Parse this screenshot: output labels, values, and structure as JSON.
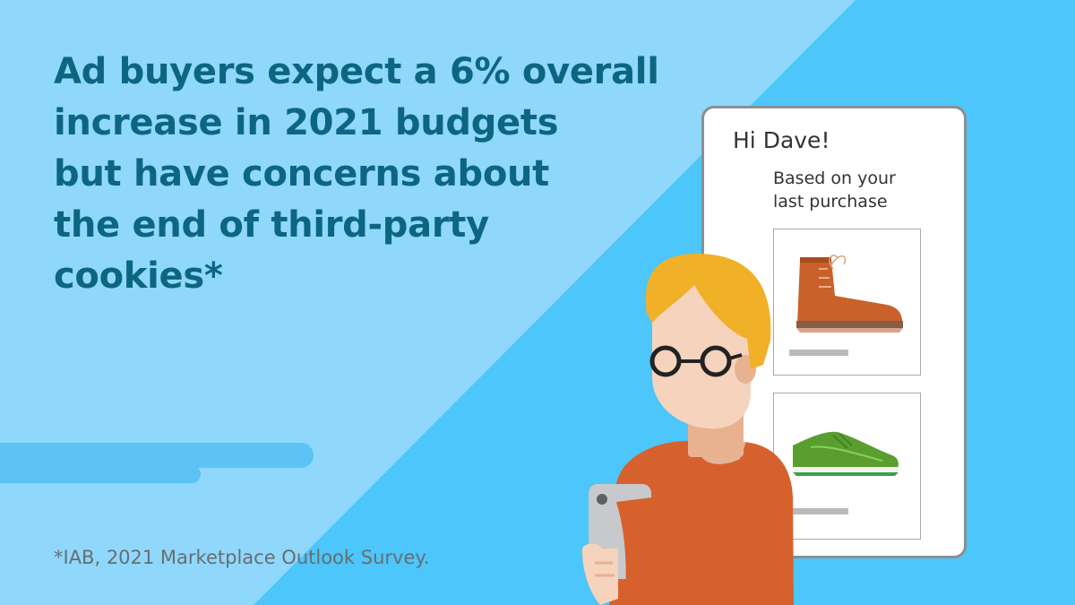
{
  "headline": {
    "lines": [
      "Ad buyers expect a 6% overall",
      "increase in 2021 budgets",
      "but have concerns about",
      "the end of third-party",
      "cookies*"
    ]
  },
  "footnote": "*IAB, 2021 Marketplace Outlook Survey.",
  "phone_screen": {
    "greeting": "Hi Dave!",
    "subtitle_lines": [
      "Based on your",
      "last purchase"
    ],
    "products": [
      {
        "icon": "brown-boot-icon",
        "color": "#c8612a"
      },
      {
        "icon": "green-sneaker-icon",
        "color": "#5a9e2f"
      }
    ]
  },
  "colors": {
    "background_light": "#8fd8fb",
    "background_dark": "#4cc6fb",
    "headline": "#0d6680",
    "shirt": "#d6612d",
    "hair": "#f0b129"
  }
}
